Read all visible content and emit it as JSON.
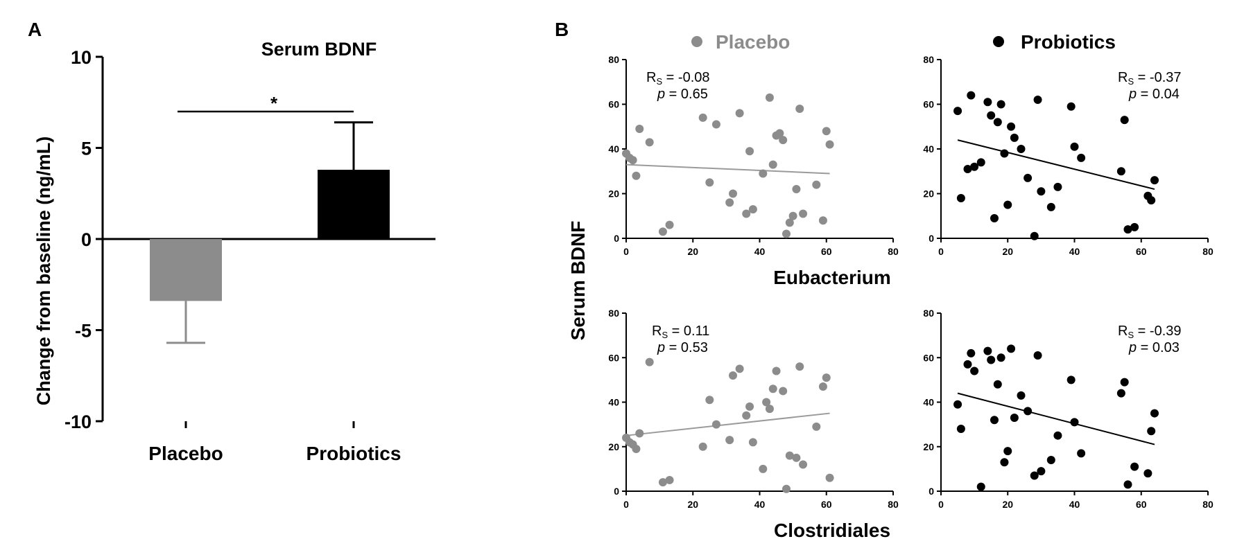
{
  "panel_labels": {
    "a": "A",
    "b": "B"
  },
  "colors": {
    "placebo": "#8c8c8c",
    "probiotics": "#000000"
  },
  "chart_data": [
    {
      "type": "bar",
      "title": "Serum BDNF",
      "ylabel": "Change from baseline (ng/mL)",
      "categories": [
        "Placebo",
        "Probiotics"
      ],
      "values": [
        -3.4,
        3.8
      ],
      "errors": [
        2.3,
        2.6
      ],
      "ylim": [
        -10,
        10
      ],
      "yticks": [
        "10",
        "5",
        "0",
        "-5",
        "-10"
      ],
      "significance": "*"
    },
    {
      "type": "scatter",
      "group": "Placebo",
      "xlabel": "Eubacterium",
      "ylabel": "Serum BDNF",
      "xlim": [
        0,
        80
      ],
      "ylim": [
        0,
        80
      ],
      "ticks": [
        "0",
        "20",
        "40",
        "60",
        "80"
      ],
      "stat_r": "R",
      "stat_r_sub": "S",
      "stat_r_value": " = -0.08",
      "stat_p": "p",
      "stat_p_value": " = 0.65",
      "trend": [
        [
          0,
          33
        ],
        [
          61,
          29
        ]
      ],
      "points": [
        [
          0,
          38
        ],
        [
          1,
          36
        ],
        [
          2,
          35
        ],
        [
          3,
          28
        ],
        [
          4,
          49
        ],
        [
          7,
          43
        ],
        [
          11,
          3
        ],
        [
          13,
          6
        ],
        [
          23,
          54
        ],
        [
          25,
          25
        ],
        [
          27,
          51
        ],
        [
          31,
          16
        ],
        [
          32,
          20
        ],
        [
          34,
          56
        ],
        [
          36,
          11
        ],
        [
          37,
          39
        ],
        [
          38,
          13
        ],
        [
          41,
          29
        ],
        [
          43,
          63
        ],
        [
          44,
          33
        ],
        [
          45,
          46
        ],
        [
          46,
          47
        ],
        [
          47,
          44
        ],
        [
          48,
          2
        ],
        [
          49,
          7
        ],
        [
          50,
          10
        ],
        [
          51,
          22
        ],
        [
          52,
          58
        ],
        [
          53,
          11
        ],
        [
          57,
          24
        ],
        [
          59,
          8
        ],
        [
          60,
          48
        ],
        [
          61,
          42
        ]
      ]
    },
    {
      "type": "scatter",
      "group": "Probiotics",
      "xlabel": "Eubacterium",
      "ylabel": "Serum BDNF",
      "xlim": [
        0,
        80
      ],
      "ylim": [
        0,
        80
      ],
      "ticks": [
        "0",
        "20",
        "40",
        "60",
        "80"
      ],
      "stat_r": "R",
      "stat_r_sub": "S",
      "stat_r_value": " = -0.37",
      "stat_p": "p",
      "stat_p_value": " = 0.04",
      "trend": [
        [
          5,
          44
        ],
        [
          64,
          22
        ]
      ],
      "points": [
        [
          5,
          57
        ],
        [
          6,
          18
        ],
        [
          8,
          31
        ],
        [
          9,
          64
        ],
        [
          10,
          32
        ],
        [
          12,
          34
        ],
        [
          14,
          61
        ],
        [
          15,
          55
        ],
        [
          16,
          9
        ],
        [
          17,
          52
        ],
        [
          18,
          60
        ],
        [
          19,
          38
        ],
        [
          20,
          15
        ],
        [
          21,
          50
        ],
        [
          22,
          45
        ],
        [
          24,
          40
        ],
        [
          26,
          27
        ],
        [
          28,
          1
        ],
        [
          29,
          62
        ],
        [
          30,
          21
        ],
        [
          33,
          14
        ],
        [
          35,
          23
        ],
        [
          39,
          59
        ],
        [
          40,
          41
        ],
        [
          42,
          36
        ],
        [
          54,
          30
        ],
        [
          55,
          53
        ],
        [
          56,
          4
        ],
        [
          58,
          5
        ],
        [
          62,
          19
        ],
        [
          63,
          17
        ],
        [
          64,
          26
        ]
      ]
    },
    {
      "type": "scatter",
      "group": "Placebo",
      "xlabel": "Clostridiales",
      "ylabel": "Serum BDNF",
      "xlim": [
        0,
        80
      ],
      "ylim": [
        0,
        80
      ],
      "ticks": [
        "0",
        "20",
        "40",
        "60",
        "80"
      ],
      "stat_r": "R",
      "stat_r_sub": "S",
      "stat_r_value": " = 0.11",
      "stat_p": "p",
      "stat_p_value": " = 0.53",
      "trend": [
        [
          0,
          25
        ],
        [
          61,
          35
        ]
      ],
      "points": [
        [
          0,
          24
        ],
        [
          1,
          22
        ],
        [
          2,
          21
        ],
        [
          3,
          19
        ],
        [
          4,
          26
        ],
        [
          7,
          58
        ],
        [
          11,
          4
        ],
        [
          13,
          5
        ],
        [
          23,
          20
        ],
        [
          25,
          41
        ],
        [
          27,
          30
        ],
        [
          31,
          23
        ],
        [
          32,
          52
        ],
        [
          34,
          55
        ],
        [
          36,
          34
        ],
        [
          37,
          38
        ],
        [
          38,
          22
        ],
        [
          41,
          10
        ],
        [
          42,
          40
        ],
        [
          43,
          37
        ],
        [
          44,
          46
        ],
        [
          45,
          54
        ],
        [
          47,
          45
        ],
        [
          48,
          1
        ],
        [
          49,
          16
        ],
        [
          51,
          15
        ],
        [
          52,
          56
        ],
        [
          53,
          12
        ],
        [
          57,
          29
        ],
        [
          59,
          47
        ],
        [
          60,
          51
        ],
        [
          61,
          6
        ]
      ]
    },
    {
      "type": "scatter",
      "group": "Probiotics",
      "xlabel": "Clostridiales",
      "ylabel": "Serum BDNF",
      "xlim": [
        0,
        80
      ],
      "ylim": [
        0,
        80
      ],
      "ticks": [
        "0",
        "20",
        "40",
        "60",
        "80"
      ],
      "stat_r": "R",
      "stat_r_sub": "S",
      "stat_r_value": " = -0.39",
      "stat_p": "p",
      "stat_p_value": " = 0.03",
      "trend": [
        [
          5,
          44
        ],
        [
          64,
          21
        ]
      ],
      "points": [
        [
          5,
          39
        ],
        [
          6,
          28
        ],
        [
          8,
          57
        ],
        [
          9,
          62
        ],
        [
          10,
          54
        ],
        [
          12,
          2
        ],
        [
          14,
          63
        ],
        [
          15,
          59
        ],
        [
          16,
          32
        ],
        [
          17,
          48
        ],
        [
          18,
          60
        ],
        [
          19,
          13
        ],
        [
          20,
          18
        ],
        [
          21,
          64
        ],
        [
          22,
          33
        ],
        [
          24,
          43
        ],
        [
          26,
          36
        ],
        [
          28,
          7
        ],
        [
          29,
          61
        ],
        [
          30,
          9
        ],
        [
          33,
          14
        ],
        [
          35,
          25
        ],
        [
          39,
          50
        ],
        [
          40,
          31
        ],
        [
          42,
          17
        ],
        [
          54,
          44
        ],
        [
          55,
          49
        ],
        [
          56,
          3
        ],
        [
          58,
          11
        ],
        [
          62,
          8
        ],
        [
          63,
          27
        ],
        [
          64,
          35
        ]
      ]
    }
  ],
  "panel_b_legend": [
    {
      "label": "Placebo",
      "color": "#8c8c8c"
    },
    {
      "label": "Probiotics",
      "color": "#000000"
    }
  ],
  "panel_b_ylabel": "Serum BDNF",
  "panel_b_xlabels": [
    "Eubacterium",
    "Clostridiales"
  ]
}
